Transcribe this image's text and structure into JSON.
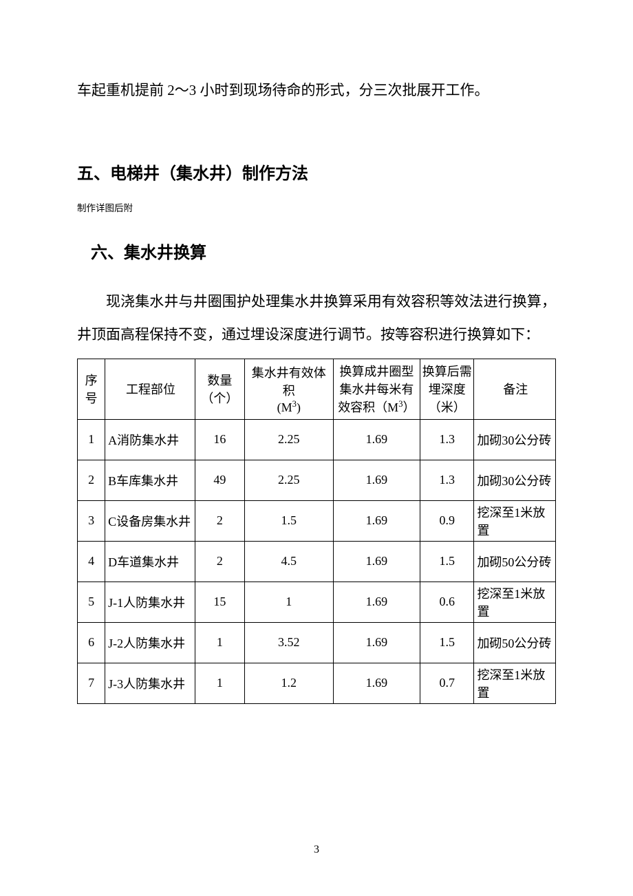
{
  "paragraph_1": "车起重机提前 2～3 小时到现场待命的形式，分三次批展开工作。",
  "heading_5": "五、电梯井（集水井）制作方法",
  "note": "制作详图后附",
  "heading_6": "六、集水井换算",
  "paragraph_2": "现浇集水井与井圈围护处理集水井换算采用有效容积等效法进行换算，井顶面高程保持不变，通过埋设深度进行调节。按等容积进行换算如下：",
  "table": {
    "columns": [
      "序号",
      "工程部位",
      "数量（个）",
      "集水井有效体积(M³)",
      "换算成井圈型集水井每米有效容积（M³）",
      "换算后需埋深度（米）",
      "备注"
    ],
    "header_labels": {
      "seq_line1": "序",
      "seq_line2": "号",
      "part": "工程部位",
      "qty_line1": "数量",
      "qty_line2": "（个）",
      "vol_line1": "集水井有效体积",
      "vol_unit": "(M",
      "vol_unit_end": ")",
      "conv_line1": "换算成井圈型",
      "conv_line2": "集水井每米有",
      "conv_line3_pre": "效容积（M",
      "conv_line3_end": "）",
      "depth_line1": "换算后需",
      "depth_line2": "埋深度",
      "depth_line3": "（米）",
      "remark": "备注"
    },
    "rows": [
      {
        "seq": "1",
        "part": "A消防集水井",
        "qty": "16",
        "vol": "2.25",
        "conv": "1.69",
        "depth": "1.3",
        "remark": "加砌30公分砖"
      },
      {
        "seq": "2",
        "part": "B车库集水井",
        "qty": "49",
        "vol": "2.25",
        "conv": "1.69",
        "depth": "1.3",
        "remark": "加砌30公分砖"
      },
      {
        "seq": "3",
        "part": "C设备房集水井",
        "qty": "2",
        "vol": "1.5",
        "conv": "1.69",
        "depth": "0.9",
        "remark": "挖深至1米放置"
      },
      {
        "seq": "4",
        "part": "D车道集水井",
        "qty": "2",
        "vol": "4.5",
        "conv": "1.69",
        "depth": "1.5",
        "remark": "加砌50公分砖"
      },
      {
        "seq": "5",
        "part": "J-1人防集水井",
        "qty": "15",
        "vol": "1",
        "conv": "1.69",
        "depth": "0.6",
        "remark": "挖深至1米放置"
      },
      {
        "seq": "6",
        "part": "J-2人防集水井",
        "qty": "1",
        "vol": "3.52",
        "conv": "1.69",
        "depth": "1.5",
        "remark": "加砌50公分砖"
      },
      {
        "seq": "7",
        "part": "J-3人防集水井",
        "qty": "1",
        "vol": "1.2",
        "conv": "1.69",
        "depth": "0.7",
        "remark": "挖深至1米放置"
      }
    ]
  },
  "page_number": "3",
  "styles": {
    "background_color": "#ffffff",
    "text_color": "#000000",
    "border_color": "#000000",
    "body_fontsize": 21,
    "heading_fontsize": 24,
    "note_fontsize": 13.5,
    "table_fontsize": 18,
    "header_row_height": 88,
    "body_row_height": 59,
    "col_widths": {
      "seq": 40,
      "part": 130,
      "qty": 72,
      "vol": 128,
      "conv": 126,
      "depth": 78,
      "remark": 118
    }
  }
}
